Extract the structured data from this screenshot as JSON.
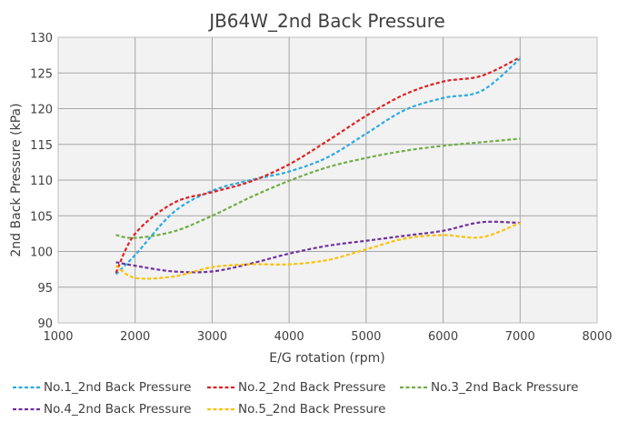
{
  "chart_data": {
    "type": "line",
    "title": "JB64W_2nd Back Pressure",
    "xlabel": "E/G rotation (rpm)",
    "ylabel": "2nd Back Pressure (kPa)",
    "xlim": [
      1000,
      8000
    ],
    "ylim": [
      90,
      130
    ],
    "x_ticks": [
      1000,
      2000,
      3000,
      4000,
      5000,
      6000,
      7000,
      8000
    ],
    "y_ticks": [
      90,
      95,
      100,
      105,
      110,
      115,
      120,
      125,
      130
    ],
    "grid": true,
    "legend_position": "bottom",
    "series": [
      {
        "name": "No.1_2nd Back Pressure",
        "color": "#29abe2",
        "x": [
          1750,
          2000,
          2500,
          3000,
          3500,
          4000,
          4500,
          5000,
          5500,
          6000,
          6500,
          7000
        ],
        "y": [
          96.8,
          99.5,
          105.5,
          108.5,
          110.0,
          111.2,
          113.2,
          116.5,
          119.8,
          121.5,
          122.5,
          127.0
        ]
      },
      {
        "name": "No.2_2nd Back Pressure",
        "color": "#e02020",
        "x": [
          1750,
          2000,
          2500,
          3000,
          3500,
          4000,
          4500,
          5000,
          5500,
          6000,
          6500,
          7000
        ],
        "y": [
          97.0,
          102.5,
          106.8,
          108.3,
          109.8,
          112.2,
          115.5,
          119.0,
          122.0,
          123.8,
          124.6,
          127.2
        ]
      },
      {
        "name": "No.3_2nd Back Pressure",
        "color": "#70ad47",
        "x": [
          1750,
          2000,
          2500,
          3000,
          3500,
          4000,
          4500,
          5000,
          5500,
          6000,
          6500,
          7000
        ],
        "y": [
          102.3,
          101.9,
          102.8,
          105.0,
          107.6,
          109.9,
          111.8,
          113.1,
          114.1,
          114.8,
          115.3,
          115.8
        ]
      },
      {
        "name": "No.4_2nd Back Pressure",
        "color": "#7030a0",
        "x": [
          1750,
          2000,
          2500,
          3000,
          3500,
          4000,
          4500,
          5000,
          5500,
          6000,
          6500,
          7000
        ],
        "y": [
          98.5,
          98.0,
          97.2,
          97.2,
          98.3,
          99.7,
          100.8,
          101.5,
          102.2,
          102.9,
          104.1,
          104.0
        ]
      },
      {
        "name": "No.5_2nd Back Pressure",
        "color": "#ffc000",
        "x": [
          1750,
          2000,
          2500,
          3000,
          3500,
          4000,
          4500,
          5000,
          5500,
          6000,
          6500,
          7000
        ],
        "y": [
          98.0,
          96.3,
          96.5,
          97.8,
          98.2,
          98.2,
          98.8,
          100.3,
          101.8,
          102.3,
          102.0,
          104.0
        ]
      }
    ]
  }
}
